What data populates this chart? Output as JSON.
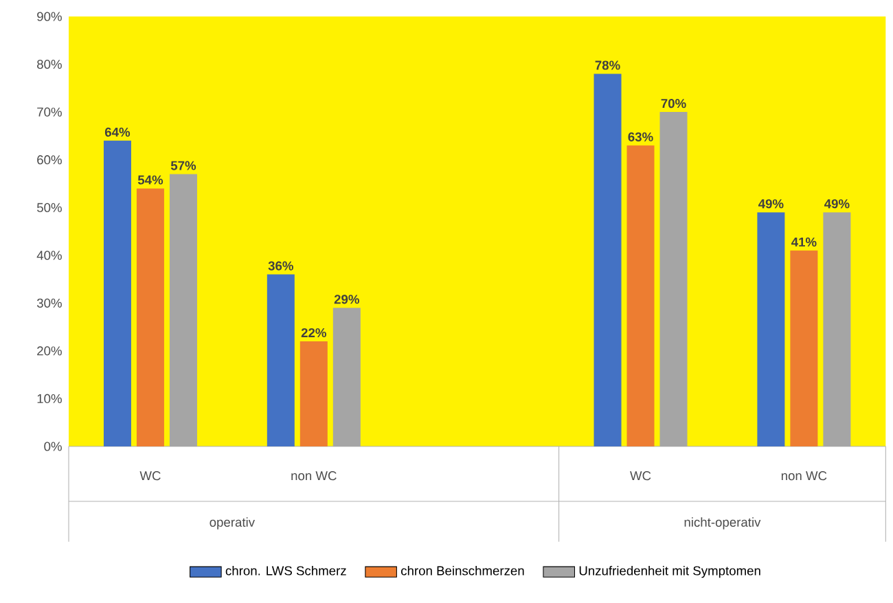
{
  "chart_data": {
    "type": "bar",
    "categories": [
      "WC",
      "non WC",
      null,
      "WC",
      "non WC"
    ],
    "series": [
      {
        "name": "chron. LWS Schmerz",
        "color": "#4472c4",
        "values": [
          64,
          36,
          null,
          78,
          49
        ],
        "value_labels": [
          "64%",
          "36%",
          null,
          "78%",
          "49%"
        ]
      },
      {
        "name": "chron Beinschmerzen",
        "color": "#ed7d31",
        "values": [
          54,
          22,
          null,
          63,
          41
        ],
        "value_labels": [
          "54%",
          "22%",
          null,
          "63%",
          "41%"
        ]
      },
      {
        "name": "Unzufriedenheit mit Symptomen",
        "color": "#a5a5a5",
        "values": [
          57,
          29,
          null,
          70,
          49
        ],
        "value_labels": [
          "57%",
          "29%",
          null,
          "70%",
          "49%"
        ]
      }
    ],
    "ylim": [
      0,
      90
    ],
    "yticks": [
      {
        "value": 0,
        "label": "0%"
      },
      {
        "value": 10,
        "label": "10%"
      },
      {
        "value": 20,
        "label": "20%"
      },
      {
        "value": 30,
        "label": "30%"
      },
      {
        "value": 40,
        "label": "40%"
      },
      {
        "value": 50,
        "label": "50%"
      },
      {
        "value": 60,
        "label": "60%"
      },
      {
        "value": 70,
        "label": "70%"
      },
      {
        "value": 80,
        "label": "80%"
      },
      {
        "value": 90,
        "label": "90%"
      }
    ],
    "annotations": [
      "operativ",
      "nicht-operativ"
    ],
    "legend": "bottom",
    "grid": false
  }
}
